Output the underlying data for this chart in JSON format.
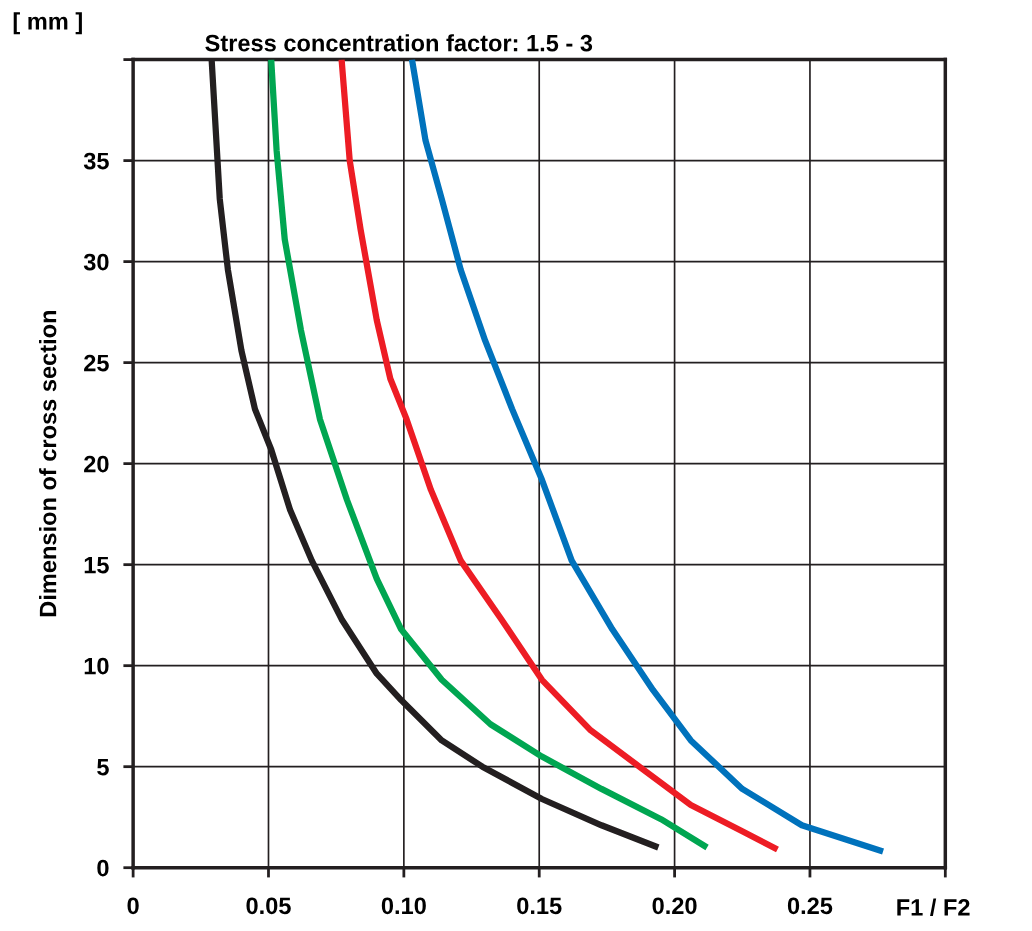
{
  "chart_data": {
    "type": "line",
    "title": "Stress concentration factor: 1.5 - 3",
    "xlabel": "F1 / F2",
    "ylabel": "Dimension of cross section",
    "annotations": [
      "[ mm ]"
    ],
    "xlim": [
      0,
      0.3
    ],
    "ylim": [
      0,
      40
    ],
    "xticks": [
      0,
      {
        "value": 0.05,
        "label": "0.05"
      },
      {
        "value": 0.1,
        "label": "0.10"
      },
      {
        "value": 0.15,
        "label": "0.15"
      },
      {
        "value": 0.2,
        "label": "0.20"
      },
      {
        "value": 0.25,
        "label": "0.25"
      },
      {
        "value": 0.3,
        "label": null
      }
    ],
    "yticks": [
      0,
      5,
      10,
      15,
      20,
      25,
      30,
      35,
      {
        "value": 40,
        "label": null
      }
    ],
    "grid": true,
    "marker": "none",
    "line_style": "solid",
    "series": [
      {
        "color": "#231f20",
        "x": [
          0.029,
          0.032,
          0.035,
          0.04,
          0.045,
          0.051,
          0.058,
          0.066,
          0.077,
          0.09,
          0.099,
          0.114,
          0.129,
          0.151,
          0.173,
          0.194
        ],
        "values": [
          40,
          33.1,
          29.6,
          25.6,
          22.7,
          20.7,
          17.7,
          15.2,
          12.3,
          9.6,
          8.3,
          6.3,
          5.0,
          3.4,
          2.1,
          1.0
        ]
      },
      {
        "color": "#00a651",
        "x": [
          0.051,
          0.053,
          0.056,
          0.062,
          0.069,
          0.079,
          0.09,
          0.099,
          0.114,
          0.132,
          0.151,
          0.173,
          0.195,
          0.212
        ],
        "values": [
          40,
          35.5,
          31.1,
          26.6,
          22.2,
          18.2,
          14.3,
          11.8,
          9.3,
          7.1,
          5.5,
          3.9,
          2.4,
          1.0
        ]
      },
      {
        "color": "#ed1c24",
        "x": [
          0.077,
          0.08,
          0.084,
          0.09,
          0.095,
          0.101,
          0.11,
          0.121,
          0.136,
          0.151,
          0.169,
          0.188,
          0.206,
          0.225,
          0.238
        ],
        "values": [
          40,
          35.0,
          31.6,
          27.1,
          24.2,
          22.2,
          18.7,
          15.2,
          12.3,
          9.3,
          6.8,
          4.9,
          3.1,
          1.8,
          0.9
        ]
      },
      {
        "color": "#0072bc",
        "x": [
          0.103,
          0.108,
          0.114,
          0.121,
          0.13,
          0.14,
          0.151,
          0.162,
          0.177,
          0.192,
          0.206,
          0.225,
          0.247,
          0.277
        ],
        "values": [
          40,
          36.0,
          33.1,
          29.6,
          26.1,
          22.7,
          19.2,
          15.2,
          11.8,
          8.8,
          6.3,
          3.9,
          2.1,
          0.8
        ]
      }
    ]
  }
}
